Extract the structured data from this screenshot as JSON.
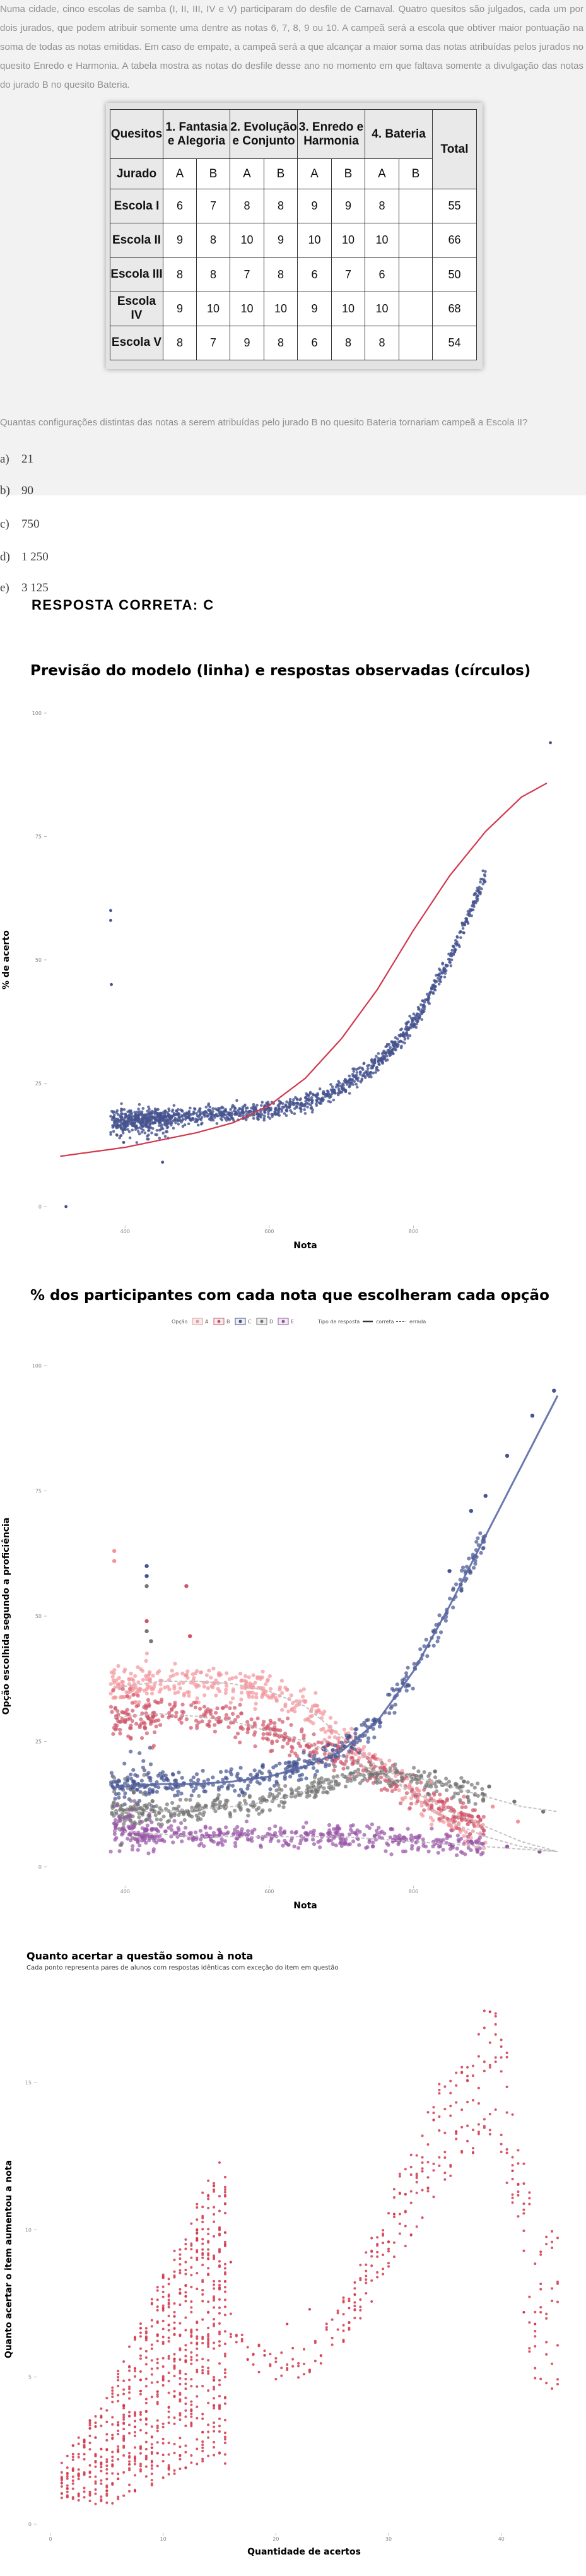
{
  "question": {
    "text": "Numa cidade, cinco escolas de samba (I, II, III, IV e V) participaram do desfile de Carnaval. Quatro quesitos são julgados, cada um por dois jurados, que podem atribuir somente uma dentre as notas 6, 7, 8, 9 ou 10. A campeã será a escola que obtiver maior pontuação na soma de todas as notas emitidas. Em caso de empate, a campeã será a que alcançar a maior soma das notas atribuídas pelos jurados no quesito Enredo e Harmonia. A tabela mostra as notas do desfile desse ano no momento em que faltava somente a divulgação das notas do jurado B no quesito Bateria.",
    "table": {
      "quesitos_label": "Quesitos",
      "total_label": "Total",
      "jurado_label": "Jurado",
      "categories": [
        "1. Fantasia e Alegoria",
        "2. Evolução e Conjunto",
        "3. Enredo e Harmonia",
        "4. Bateria"
      ],
      "judges": [
        "A",
        "B",
        "A",
        "B",
        "A",
        "B",
        "A",
        "B"
      ],
      "rows": [
        {
          "school": "Escola I",
          "scores": [
            "6",
            "7",
            "8",
            "8",
            "9",
            "9",
            "8",
            ""
          ],
          "total": "55"
        },
        {
          "school": "Escola II",
          "scores": [
            "9",
            "8",
            "10",
            "9",
            "10",
            "10",
            "10",
            ""
          ],
          "total": "66"
        },
        {
          "school": "Escola III",
          "scores": [
            "8",
            "8",
            "7",
            "8",
            "6",
            "7",
            "6",
            ""
          ],
          "total": "50"
        },
        {
          "school": "Escola IV",
          "scores": [
            "9",
            "10",
            "10",
            "10",
            "9",
            "10",
            "10",
            ""
          ],
          "total": "68"
        },
        {
          "school": "Escola V",
          "scores": [
            "8",
            "7",
            "9",
            "8",
            "6",
            "8",
            "8",
            ""
          ],
          "total": "54"
        }
      ]
    },
    "prompt": "Quantas configurações distintas das notas a serem atribuídas pelo jurado B no quesito Bateria tornariam campeã a Escola II?",
    "alternatives": [
      {
        "letter": "a)",
        "value": "21"
      },
      {
        "letter": "b)",
        "value": "90"
      },
      {
        "letter": "c)",
        "value": "750"
      },
      {
        "letter": "d)",
        "value": "1 250"
      },
      {
        "letter": "e)",
        "value": "3 125"
      }
    ],
    "answer": "RESPOSTA CORRETA: C"
  },
  "colors": {
    "blue": "#45538f",
    "red_curve": "#d2384c",
    "pink_a": "#f3949b",
    "red_b": "#d05569",
    "grey_d": "#757575",
    "purple_e": "#9856a6",
    "axis_text": "#888888"
  },
  "chart_data": [
    {
      "type": "scatter",
      "title": "Previsão do modelo (linha) e respostas observadas (círculos)",
      "xlabel": "Nota",
      "ylabel": "% de acerto",
      "xlim": [
        300,
        1000
      ],
      "ylim": [
        0,
        100
      ],
      "xticks": [
        400,
        600,
        800
      ],
      "yticks": [
        0,
        25,
        50,
        75,
        100
      ],
      "series": [
        {
          "name": "observado",
          "x": [
            300,
            400,
            450,
            500,
            550,
            600,
            650,
            700,
            750,
            800,
            850,
            900,
            950,
            1000
          ],
          "y": [
            17,
            17.5,
            18,
            18.5,
            19,
            19.5,
            21,
            24,
            29,
            37,
            50,
            67,
            82,
            93
          ]
        },
        {
          "name": "modelo",
          "x": [
            300,
            400,
            450,
            500,
            550,
            600,
            650,
            700,
            750,
            800,
            850,
            900,
            950,
            1000
          ],
          "y": [
            10,
            12,
            13.5,
            15,
            17,
            20.5,
            26,
            34,
            44,
            56,
            67,
            76,
            83,
            87
          ]
        }
      ]
    },
    {
      "type": "line",
      "title": "% dos participantes com cada nota que escolheram cada opção",
      "xlabel": "Nota",
      "ylabel": "Opção escolhida segundo a proficiência",
      "legend_option_label": "Opção",
      "legend_type_label": "Tipo de resposta",
      "legend_type_correct": "correta",
      "legend_type_wrong": "errada",
      "xlim": [
        300,
        1000
      ],
      "ylim": [
        0,
        100
      ],
      "xticks": [
        400,
        600,
        800
      ],
      "yticks": [
        0,
        25,
        50,
        75,
        100
      ],
      "x": [
        300,
        400,
        450,
        500,
        550,
        600,
        650,
        700,
        750,
        800,
        850,
        900,
        950,
        1000
      ],
      "series": [
        {
          "name": "A",
          "values": [
            34,
            36,
            37,
            37,
            36.5,
            35,
            32,
            26,
            20,
            14,
            9,
            6,
            4,
            3
          ]
        },
        {
          "name": "B",
          "values": [
            29,
            30,
            30.5,
            30,
            29,
            27,
            25,
            22,
            19,
            15,
            11,
            8,
            5,
            3
          ]
        },
        {
          "name": "C",
          "values": [
            15,
            16,
            16.5,
            16.5,
            17,
            18,
            20,
            23,
            29,
            39,
            52,
            66,
            80,
            94
          ]
        },
        {
          "name": "D",
          "values": [
            11,
            11,
            11,
            11.5,
            12,
            13,
            15,
            18,
            19,
            18,
            16,
            14,
            12,
            11
          ]
        },
        {
          "name": "E",
          "values": [
            8,
            7,
            6.5,
            6,
            6,
            6,
            6,
            6,
            5.5,
            5,
            4.5,
            4,
            3.5,
            3
          ]
        }
      ],
      "correct_option": "C"
    },
    {
      "type": "scatter",
      "title": "Quanto acertar a questão somou à nota",
      "subtitle": "Cada ponto representa pares de alunos com respostas idênticas com exceção do item em questão",
      "xlabel": "Quantidade de acertos",
      "ylabel": "Quanto acertar o item aumentou a nota",
      "xlim": [
        0,
        45
      ],
      "ylim": [
        0,
        18
      ],
      "xticks": [
        0,
        10,
        20,
        30,
        40
      ],
      "yticks": [
        0,
        5,
        10,
        15
      ],
      "x": [
        1,
        3,
        5,
        7,
        9,
        11,
        13,
        15,
        17,
        19,
        21,
        23,
        25,
        27,
        29,
        31,
        33,
        35,
        37,
        39,
        41,
        43
      ],
      "values": [
        1.5,
        2,
        2.5,
        3.5,
        4.5,
        5.5,
        6.5,
        7.5,
        6,
        5.5,
        5.5,
        5.5,
        6.5,
        7.5,
        9,
        10.5,
        12,
        13.5,
        14.5,
        15.5,
        13.5,
        7
      ]
    }
  ]
}
